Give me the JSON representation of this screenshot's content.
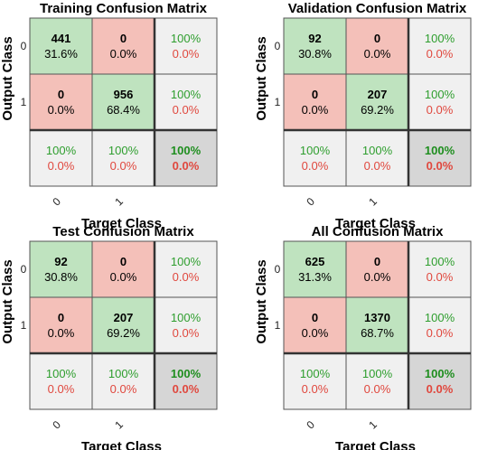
{
  "chart_data": [
    {
      "type": "heatmap",
      "title": "Training Confusion Matrix",
      "xlabel": "Target Class",
      "ylabel": "Output Class",
      "classes": [
        "0",
        "1"
      ],
      "cells": [
        [
          {
            "count": "441",
            "pct": "31.6%"
          },
          {
            "count": "0",
            "pct": "0.0%"
          }
        ],
        [
          {
            "count": "0",
            "pct": "0.0%"
          },
          {
            "count": "956",
            "pct": "68.4%"
          }
        ]
      ],
      "row_summary": [
        [
          "100%",
          "0.0%"
        ],
        [
          "100%",
          "0.0%"
        ]
      ],
      "col_summary": [
        [
          "100%",
          "0.0%"
        ],
        [
          "100%",
          "0.0%"
        ]
      ],
      "overall": [
        "100%",
        "0.0%"
      ]
    },
    {
      "type": "heatmap",
      "title": "Validation Confusion Matrix",
      "xlabel": "Target Class",
      "ylabel": "Output Class",
      "classes": [
        "0",
        "1"
      ],
      "cells": [
        [
          {
            "count": "92",
            "pct": "30.8%"
          },
          {
            "count": "0",
            "pct": "0.0%"
          }
        ],
        [
          {
            "count": "0",
            "pct": "0.0%"
          },
          {
            "count": "207",
            "pct": "69.2%"
          }
        ]
      ],
      "row_summary": [
        [
          "100%",
          "0.0%"
        ],
        [
          "100%",
          "0.0%"
        ]
      ],
      "col_summary": [
        [
          "100%",
          "0.0%"
        ],
        [
          "100%",
          "0.0%"
        ]
      ],
      "overall": [
        "100%",
        "0.0%"
      ]
    },
    {
      "type": "heatmap",
      "title": "Test Confusion Matrix",
      "xlabel": "Target Class",
      "ylabel": "Output Class",
      "classes": [
        "0",
        "1"
      ],
      "cells": [
        [
          {
            "count": "92",
            "pct": "30.8%"
          },
          {
            "count": "0",
            "pct": "0.0%"
          }
        ],
        [
          {
            "count": "0",
            "pct": "0.0%"
          },
          {
            "count": "207",
            "pct": "69.2%"
          }
        ]
      ],
      "row_summary": [
        [
          "100%",
          "0.0%"
        ],
        [
          "100%",
          "0.0%"
        ]
      ],
      "col_summary": [
        [
          "100%",
          "0.0%"
        ],
        [
          "100%",
          "0.0%"
        ]
      ],
      "overall": [
        "100%",
        "0.0%"
      ]
    },
    {
      "type": "heatmap",
      "title": "All Confusion Matrix",
      "xlabel": "Target Class",
      "ylabel": "Output Class",
      "classes": [
        "0",
        "1"
      ],
      "cells": [
        [
          {
            "count": "625",
            "pct": "31.3%"
          },
          {
            "count": "0",
            "pct": "0.0%"
          }
        ],
        [
          {
            "count": "0",
            "pct": "0.0%"
          },
          {
            "count": "1370",
            "pct": "68.7%"
          }
        ]
      ],
      "row_summary": [
        [
          "100%",
          "0.0%"
        ],
        [
          "100%",
          "0.0%"
        ]
      ],
      "col_summary": [
        [
          "100%",
          "0.0%"
        ],
        [
          "100%",
          "0.0%"
        ]
      ],
      "overall": [
        "100%",
        "0.0%"
      ]
    }
  ],
  "colors": {
    "correct": "#bfe3bf",
    "incorrect": "#f4c0b9",
    "summary": "#f0f0f0",
    "overall": "#d6d6d6",
    "grid": "#555555",
    "good_text": "#2e9e2e",
    "bad_text": "#e0483e"
  }
}
